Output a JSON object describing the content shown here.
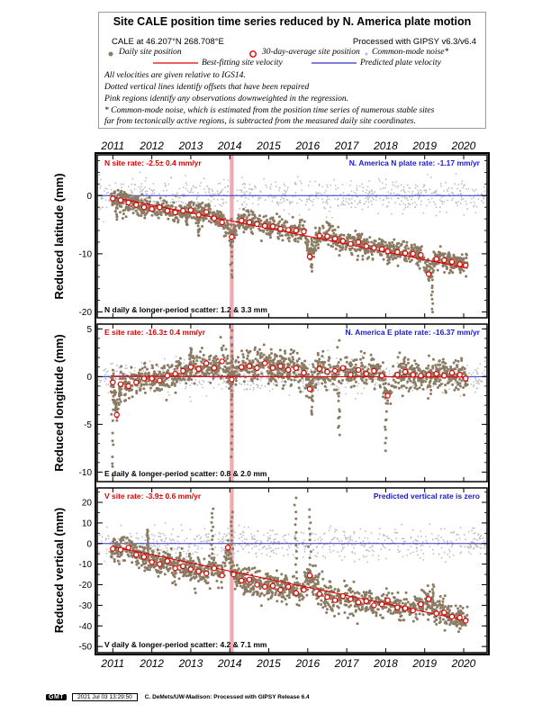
{
  "header": {
    "title": "Site CALE position time series reduced by N. America plate motion",
    "location": "CALE at 46.207°N 268.708°E",
    "processing": "Processed with GIPSY v6.3/v6.4",
    "legend": {
      "daily": "Daily site position",
      "avg30": "30-day-average site position",
      "cmn": "Common-mode noise*",
      "fit": "Best-fitting site velocity",
      "plate": "Predicted plate velocity"
    },
    "notes": [
      "All velocities are given relative to IGS14.",
      "Dotted vertical lines identify offsets that have been repaired",
      "Pink regions identify any observations downweighted in the regression.",
      "* Common-mode noise, which is estimated from the position time series of numerous stable sites",
      "far from tectonically active regions, is subtracted from the measured daily site coordinates."
    ]
  },
  "footer": {
    "logo": "GMT",
    "timestamp": "2021 Jul 03 13:29:50",
    "credit": "C. DeMets/UW-Madison: Processed with GIPSY Release 6.4"
  },
  "colors": {
    "daily": "#8b7b63",
    "cmn": "#bdbdbd",
    "fit": "#e00000",
    "plate": "#3030d0",
    "pink": "#f3a9b0",
    "rate_left": "#e00000",
    "rate_right": "#1a1ad0"
  },
  "chart_data": [
    {
      "type": "scatter",
      "component": "N",
      "ylabel": "Reduced latitude (mm)",
      "ylim": [
        -21,
        7
      ],
      "yticks": [
        0,
        -10,
        -20
      ],
      "xlim": [
        2010.6,
        2020.6
      ],
      "xticks": [
        "2011",
        "2012",
        "2013",
        "2014",
        "2015",
        "2016",
        "2017",
        "2018",
        "2019",
        "2020"
      ],
      "site_rate": "N site rate:  -2.5± 0.4 mm/yr",
      "plate_rate": "N. America N plate rate:  -1.17 mm/yr",
      "scatter_text": "N daily & longer-period scatter:   1.2 &   3.3 mm",
      "fit_line": {
        "x": [
          2010.95,
          2020.1
        ],
        "y": [
          -0.2,
          -12.5
        ]
      },
      "plate_line": {
        "y": 0
      },
      "downweighted_interval": [
        2014.0,
        2014.1
      ],
      "series": [
        {
          "name": "30-day-average site position",
          "x": [
            2011.0,
            2011.2,
            2011.4,
            2011.6,
            2011.8,
            2012.0,
            2012.2,
            2012.4,
            2012.6,
            2012.8,
            2013.0,
            2013.2,
            2013.4,
            2013.6,
            2013.8,
            2014.05,
            2014.3,
            2014.5,
            2014.7,
            2014.9,
            2015.1,
            2015.3,
            2015.5,
            2015.7,
            2015.9,
            2016.05,
            2016.3,
            2016.5,
            2016.7,
            2016.9,
            2017.1,
            2017.3,
            2017.5,
            2017.7,
            2017.9,
            2018.05,
            2018.3,
            2018.5,
            2018.7,
            2018.9,
            2019.1,
            2019.3,
            2019.5,
            2019.7,
            2019.9,
            2020.05
          ],
          "y": [
            -0.5,
            -0.8,
            -1.2,
            -1.6,
            -2.0,
            -2.3,
            -2.0,
            -2.6,
            -2.9,
            -2.6,
            -2.5,
            -3.3,
            -2.8,
            -3.9,
            -4.6,
            -7.1,
            -4.3,
            -4.6,
            -4.9,
            -5.2,
            -5.3,
            -5.7,
            -5.9,
            -6.0,
            -6.2,
            -10.5,
            -6.9,
            -7.0,
            -7.4,
            -7.8,
            -8.3,
            -8.0,
            -8.7,
            -9.0,
            -9.2,
            -9.6,
            -9.7,
            -9.9,
            -10.0,
            -10.2,
            -13.5,
            -10.9,
            -11.1,
            -11.4,
            -11.8,
            -12.0
          ]
        }
      ]
    },
    {
      "type": "scatter",
      "component": "E",
      "ylabel": "Reduced longitude (mm)",
      "ylim": [
        -11,
        5.5
      ],
      "yticks": [
        5,
        0,
        -5,
        -10
      ],
      "xlim": [
        2010.6,
        2020.6
      ],
      "xticks": [
        "2011",
        "2012",
        "2013",
        "2014",
        "2015",
        "2016",
        "2017",
        "2018",
        "2019",
        "2020"
      ],
      "site_rate": "E site rate:  -16.3± 0.4 mm/yr",
      "plate_rate": "N. America E plate rate:  -16.37 mm/yr",
      "scatter_text": "E daily & longer-period scatter:   0.8 &   2.0 mm",
      "fit_line": {
        "x": [
          2010.95,
          2020.1
        ],
        "y": [
          0.05,
          -0.05
        ]
      },
      "plate_line": {
        "y": 0
      },
      "downweighted_interval": [
        2014.0,
        2014.1
      ],
      "series": [
        {
          "name": "30-day-average site position",
          "x": [
            2011.0,
            2011.1,
            2011.2,
            2011.4,
            2011.6,
            2011.8,
            2012.0,
            2012.2,
            2012.4,
            2012.6,
            2012.8,
            2013.0,
            2013.2,
            2013.4,
            2013.6,
            2013.8,
            2014.05,
            2014.3,
            2014.5,
            2014.7,
            2014.9,
            2015.1,
            2015.3,
            2015.5,
            2015.7,
            2015.9,
            2016.05,
            2016.3,
            2016.5,
            2016.7,
            2016.9,
            2017.1,
            2017.3,
            2017.5,
            2017.7,
            2017.9,
            2018.05,
            2018.3,
            2018.5,
            2018.7,
            2018.9,
            2019.1,
            2019.3,
            2019.5,
            2019.7,
            2019.9,
            2020.05
          ],
          "y": [
            -0.6,
            -4.0,
            -0.8,
            -1.0,
            -0.6,
            -0.2,
            -0.2,
            -0.4,
            0.1,
            0.3,
            0.6,
            1.0,
            0.8,
            1.4,
            0.9,
            1.6,
            -0.3,
            1.0,
            1.1,
            0.9,
            1.4,
            0.9,
            1.1,
            0.7,
            0.9,
            0.4,
            -1.3,
            0.8,
            0.5,
            0.6,
            0.9,
            0.2,
            0.7,
            0.3,
            0.6,
            0.1,
            -2.0,
            0.2,
            0.5,
            0.2,
            0.1,
            0.2,
            0.3,
            0.1,
            0.4,
            0.2,
            -0.2
          ]
        }
      ]
    },
    {
      "type": "scatter",
      "component": "V",
      "ylabel": "Reduced vertical (mm)",
      "ylim": [
        -53,
        27
      ],
      "yticks": [
        20,
        10,
        0,
        -10,
        -20,
        -30,
        -40,
        -50
      ],
      "xlim": [
        2010.6,
        2020.6
      ],
      "xticks": [
        "2011",
        "2012",
        "2013",
        "2014",
        "2015",
        "2016",
        "2017",
        "2018",
        "2019",
        "2020"
      ],
      "site_rate": "V site rate:  -3.9± 0.6 mm/yr",
      "plate_rate": "Predicted vertical rate is zero",
      "scatter_text": "V daily & longer-period scatter:   4.2 &   7.1 mm",
      "fit_line": {
        "x": [
          2011.0,
          2020.1
        ],
        "y": [
          -1.5,
          -37.5
        ]
      },
      "plate_line": {
        "y": 0
      },
      "downweighted_interval": [
        2014.0,
        2014.1
      ],
      "series": [
        {
          "name": "30-day-average site position",
          "x": [
            2011.0,
            2011.2,
            2011.4,
            2011.6,
            2011.8,
            2012.0,
            2012.2,
            2012.4,
            2012.6,
            2012.8,
            2013.0,
            2013.2,
            2013.4,
            2013.6,
            2013.8,
            2013.95,
            2014.1,
            2014.3,
            2014.5,
            2014.7,
            2014.9,
            2015.1,
            2015.3,
            2015.5,
            2015.7,
            2015.9,
            2016.05,
            2016.3,
            2016.5,
            2016.7,
            2016.9,
            2017.1,
            2017.3,
            2017.5,
            2017.7,
            2017.9,
            2018.05,
            2018.3,
            2018.5,
            2018.7,
            2018.9,
            2019.1,
            2019.3,
            2019.5,
            2019.7,
            2019.9,
            2020.05
          ],
          "y": [
            -2.5,
            -3.0,
            -2.0,
            -5.5,
            -6.5,
            -9.0,
            -10.0,
            -8.5,
            -12.0,
            -11.0,
            -12.5,
            -13.5,
            -14.5,
            -12.0,
            -15.5,
            -2.0,
            -15.0,
            -18.0,
            -17.5,
            -20.0,
            -21.0,
            -20.5,
            -22.5,
            -21.0,
            -24.0,
            -22.5,
            -15.5,
            -24.5,
            -26.0,
            -27.5,
            -25.5,
            -27.0,
            -28.5,
            -28.0,
            -30.0,
            -29.5,
            -27.5,
            -31.0,
            -31.5,
            -32.5,
            -29.5,
            -27.0,
            -34.0,
            -33.5,
            -35.5,
            -36.0,
            -37.5
          ]
        }
      ]
    }
  ]
}
